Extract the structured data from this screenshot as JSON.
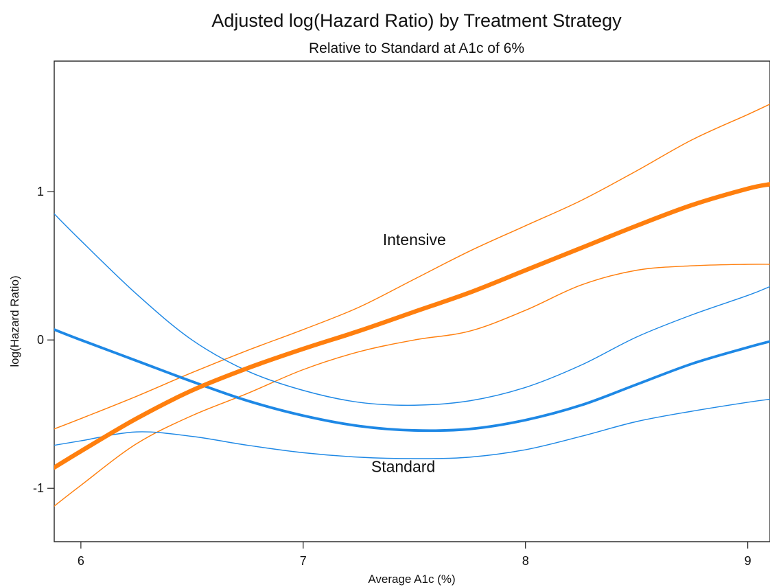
{
  "chart_data": {
    "type": "line",
    "title": "Adjusted log(Hazard Ratio) by Treatment Strategy",
    "subtitle": "Relative to Standard at A1c of 6%",
    "xlabel": "Average A1c (%)",
    "ylabel": "log(Hazard Ratio)",
    "xlim": [
      5.88,
      9.1
    ],
    "ylim": [
      -1.36,
      1.88
    ],
    "x_ticks": [
      6,
      7,
      8,
      9
    ],
    "y_ticks": [
      -1,
      0,
      1
    ],
    "x_tick_labels": [
      "6",
      "7",
      "8",
      "9"
    ],
    "y_tick_labels": [
      "-1",
      "0",
      "1"
    ],
    "grid": false,
    "annotations": [
      {
        "text": "Intensive",
        "x": 7.5,
        "y": 0.64
      },
      {
        "text": "Standard",
        "x": 7.45,
        "y": -0.89
      }
    ],
    "series": [
      {
        "key": "intensive_estimate",
        "group": "Intensive",
        "color": "#ff7f0e",
        "style": "thick",
        "x": [
          5.88,
          6.0,
          6.25,
          6.5,
          6.75,
          7.0,
          7.25,
          7.5,
          7.75,
          8.0,
          8.25,
          8.5,
          8.75,
          9.0,
          9.1
        ],
        "y": [
          -0.86,
          -0.75,
          -0.53,
          -0.34,
          -0.19,
          -0.06,
          0.06,
          0.19,
          0.32,
          0.47,
          0.62,
          0.77,
          0.91,
          1.02,
          1.05
        ]
      },
      {
        "key": "intensive_upper",
        "group": "Intensive",
        "color": "#ff7f0e",
        "style": "thin",
        "x": [
          5.88,
          6.0,
          6.25,
          6.5,
          6.75,
          7.0,
          7.25,
          7.5,
          7.75,
          8.0,
          8.25,
          8.5,
          8.75,
          9.0,
          9.1
        ],
        "y": [
          -0.6,
          -0.53,
          -0.38,
          -0.22,
          -0.07,
          0.07,
          0.22,
          0.41,
          0.6,
          0.77,
          0.94,
          1.14,
          1.35,
          1.52,
          1.59
        ]
      },
      {
        "key": "intensive_lower",
        "group": "Intensive",
        "color": "#ff7f0e",
        "style": "thin",
        "x": [
          5.88,
          6.0,
          6.25,
          6.5,
          6.75,
          7.0,
          7.25,
          7.5,
          7.75,
          8.0,
          8.25,
          8.5,
          8.75,
          9.0,
          9.1
        ],
        "y": [
          -1.12,
          -0.98,
          -0.7,
          -0.51,
          -0.36,
          -0.2,
          -0.08,
          0.0,
          0.06,
          0.2,
          0.37,
          0.47,
          0.5,
          0.51,
          0.51
        ]
      },
      {
        "key": "standard_estimate",
        "group": "Standard",
        "color": "#1e88e5",
        "style": "thick",
        "x": [
          5.88,
          6.0,
          6.25,
          6.5,
          6.75,
          7.0,
          7.25,
          7.5,
          7.75,
          8.0,
          8.25,
          8.5,
          8.75,
          9.0,
          9.1
        ],
        "y": [
          0.07,
          0.0,
          -0.14,
          -0.28,
          -0.41,
          -0.51,
          -0.58,
          -0.61,
          -0.6,
          -0.54,
          -0.44,
          -0.3,
          -0.16,
          -0.05,
          -0.01
        ]
      },
      {
        "key": "standard_upper",
        "group": "Standard",
        "color": "#1e88e5",
        "style": "thin",
        "x": [
          5.88,
          6.0,
          6.25,
          6.5,
          6.75,
          7.0,
          7.25,
          7.5,
          7.75,
          8.0,
          8.25,
          8.5,
          8.75,
          9.0,
          9.1
        ],
        "y": [
          0.85,
          0.67,
          0.31,
          0.0,
          -0.21,
          -0.34,
          -0.42,
          -0.44,
          -0.41,
          -0.32,
          -0.17,
          0.02,
          0.17,
          0.3,
          0.36
        ]
      },
      {
        "key": "standard_lower",
        "group": "Standard",
        "color": "#1e88e5",
        "style": "thin",
        "x": [
          5.88,
          6.0,
          6.25,
          6.5,
          6.75,
          7.0,
          7.25,
          7.5,
          7.75,
          8.0,
          8.25,
          8.5,
          8.75,
          9.0,
          9.1
        ],
        "y": [
          -0.71,
          -0.68,
          -0.62,
          -0.65,
          -0.71,
          -0.76,
          -0.79,
          -0.8,
          -0.79,
          -0.74,
          -0.65,
          -0.55,
          -0.48,
          -0.42,
          -0.4
        ]
      }
    ]
  }
}
